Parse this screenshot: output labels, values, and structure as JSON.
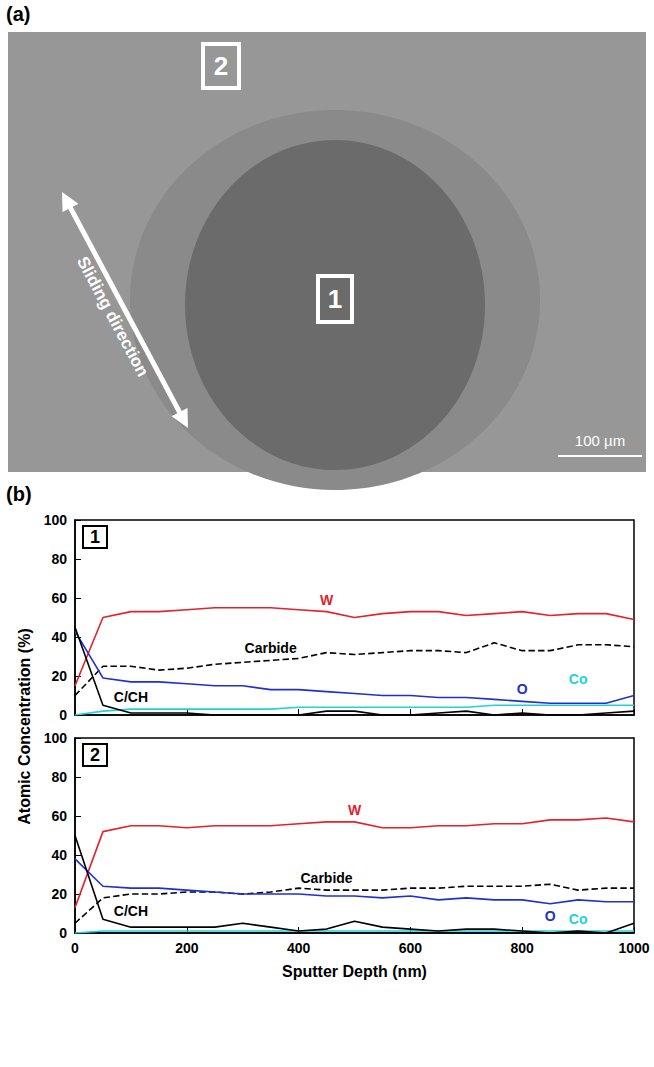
{
  "panel_labels": {
    "a": "(a)",
    "b": "(b)"
  },
  "image": {
    "regions": [
      "1",
      "2"
    ],
    "arrow_label": "Sliding direction",
    "scale_bar": "100 µm"
  },
  "y_label": "Atomic Concentration (%)",
  "chart_data": [
    {
      "type": "line",
      "title": "1",
      "xlim": [
        0,
        1000
      ],
      "xticks": [
        0,
        200,
        400,
        600,
        800,
        1000
      ],
      "ylim": [
        0,
        100
      ],
      "yticks": [
        0,
        20,
        40,
        60,
        80,
        100
      ],
      "tick_labels": "y",
      "grid": false,
      "x": [
        0,
        50,
        100,
        150,
        200,
        250,
        300,
        350,
        400,
        450,
        500,
        550,
        600,
        650,
        700,
        750,
        800,
        850,
        900,
        950,
        1000
      ],
      "series": [
        {
          "name": "W",
          "color": "#e3222b",
          "line_style": "solid",
          "values": [
            15,
            50,
            53,
            53,
            54,
            55,
            55,
            55,
            54,
            53,
            50,
            52,
            53,
            53,
            51,
            52,
            53,
            51,
            52,
            52,
            49
          ]
        },
        {
          "name": "Carbide",
          "color": "#000000",
          "line_style": "dashed",
          "values": [
            10,
            25,
            25,
            23,
            24,
            26,
            27,
            28,
            29,
            32,
            31,
            32,
            33,
            33,
            32,
            37,
            33,
            33,
            36,
            36,
            35
          ]
        },
        {
          "name": "O",
          "color": "#2030d0",
          "line_style": "solid",
          "values": [
            43,
            19,
            17,
            17,
            16,
            15,
            15,
            13,
            13,
            12,
            11,
            10,
            10,
            9,
            9,
            8,
            7,
            6,
            6,
            6,
            10
          ]
        },
        {
          "name": "Co",
          "color": "#22d0e0",
          "line_style": "solid",
          "values": [
            0,
            2,
            3,
            3,
            3,
            3,
            3,
            3,
            4,
            4,
            4,
            4,
            4,
            4,
            4,
            5,
            5,
            5,
            5,
            5,
            5
          ]
        },
        {
          "name": "C/CH",
          "color": "#000000",
          "line_style": "solid",
          "values": [
            45,
            5,
            1,
            1,
            1,
            0,
            0,
            0,
            0,
            2,
            2,
            0,
            0,
            1,
            2,
            0,
            1,
            0,
            0,
            1,
            2
          ]
        }
      ]
    },
    {
      "type": "line",
      "title": "2",
      "x_label": "Sputter Depth (nm)",
      "xlim": [
        0,
        1000
      ],
      "xticks": [
        0,
        200,
        400,
        600,
        800,
        1000
      ],
      "ylim": [
        0,
        100
      ],
      "yticks": [
        0,
        20,
        40,
        60,
        80,
        100
      ],
      "tick_labels": true,
      "grid": false,
      "x": [
        0,
        50,
        100,
        150,
        200,
        250,
        300,
        350,
        400,
        450,
        500,
        550,
        600,
        650,
        700,
        750,
        800,
        850,
        900,
        950,
        1000
      ],
      "series": [
        {
          "name": "W",
          "color": "#e3222b",
          "line_style": "solid",
          "values": [
            13,
            52,
            55,
            55,
            54,
            55,
            55,
            55,
            56,
            57,
            57,
            54,
            54,
            55,
            55,
            56,
            56,
            58,
            58,
            59,
            57
          ]
        },
        {
          "name": "Carbide",
          "color": "#000000",
          "line_style": "dashed",
          "values": [
            5,
            18,
            20,
            20,
            21,
            21,
            20,
            21,
            23,
            22,
            22,
            22,
            23,
            23,
            24,
            24,
            24,
            25,
            22,
            23,
            23
          ]
        },
        {
          "name": "O",
          "color": "#2030d0",
          "line_style": "solid",
          "values": [
            38,
            24,
            23,
            23,
            22,
            21,
            20,
            20,
            20,
            19,
            19,
            18,
            19,
            17,
            18,
            17,
            17,
            15,
            17,
            16,
            16
          ]
        },
        {
          "name": "Co",
          "color": "#22d0e0",
          "line_style": "solid",
          "values": [
            0,
            1,
            1,
            1,
            1,
            1,
            1,
            1,
            1,
            1,
            1,
            1,
            1,
            1,
            1,
            1,
            1,
            1,
            1,
            1,
            1
          ]
        },
        {
          "name": "C/CH",
          "color": "#000000",
          "line_style": "solid",
          "values": [
            50,
            7,
            3,
            3,
            3,
            3,
            5,
            3,
            1,
            2,
            6,
            3,
            2,
            1,
            2,
            2,
            1,
            0,
            1,
            0,
            5
          ]
        }
      ]
    }
  ]
}
